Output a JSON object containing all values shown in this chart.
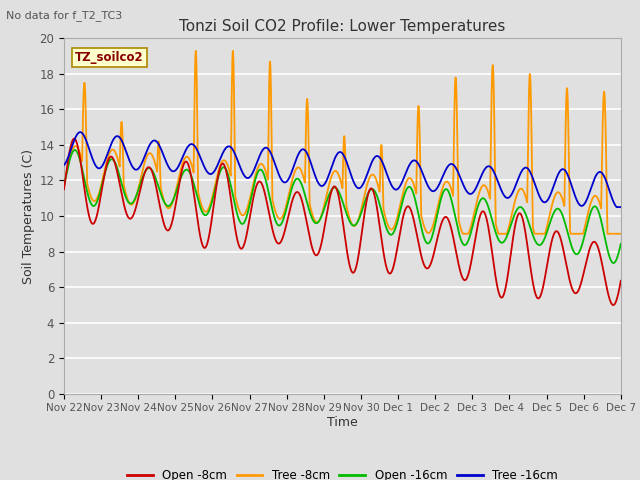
{
  "title": "Tonzi Soil CO2 Profile: Lower Temperatures",
  "top_left_note": "No data for f_T2_TC3",
  "ylabel": "Soil Temperatures (C)",
  "xlabel": "Time",
  "legend_label": "TZ_soilco2",
  "ylim": [
    0,
    20
  ],
  "fig_bg": "#e0e0e0",
  "plot_bg": "#e0e0e0",
  "series": {
    "open_8cm": {
      "label": "Open -8cm",
      "color": "#cc0000"
    },
    "tree_8cm": {
      "label": "Tree -8cm",
      "color": "#ff9900"
    },
    "open_16cm": {
      "label": "Open -16cm",
      "color": "#00bb00"
    },
    "tree_16cm": {
      "label": "Tree -16cm",
      "color": "#0000cc"
    }
  },
  "xtick_labels": [
    "Nov 22",
    "Nov 23",
    "Nov 24",
    "Nov 25",
    "Nov 26",
    "Nov 27",
    "Nov 28",
    "Nov 29",
    "Nov 30",
    "Dec 1",
    "Dec 2",
    "Dec 3",
    "Dec 4",
    "Dec 5",
    "Dec 6",
    "Dec 7"
  ],
  "ytick_values": [
    0,
    2,
    4,
    6,
    8,
    10,
    12,
    14,
    16,
    18,
    20
  ]
}
